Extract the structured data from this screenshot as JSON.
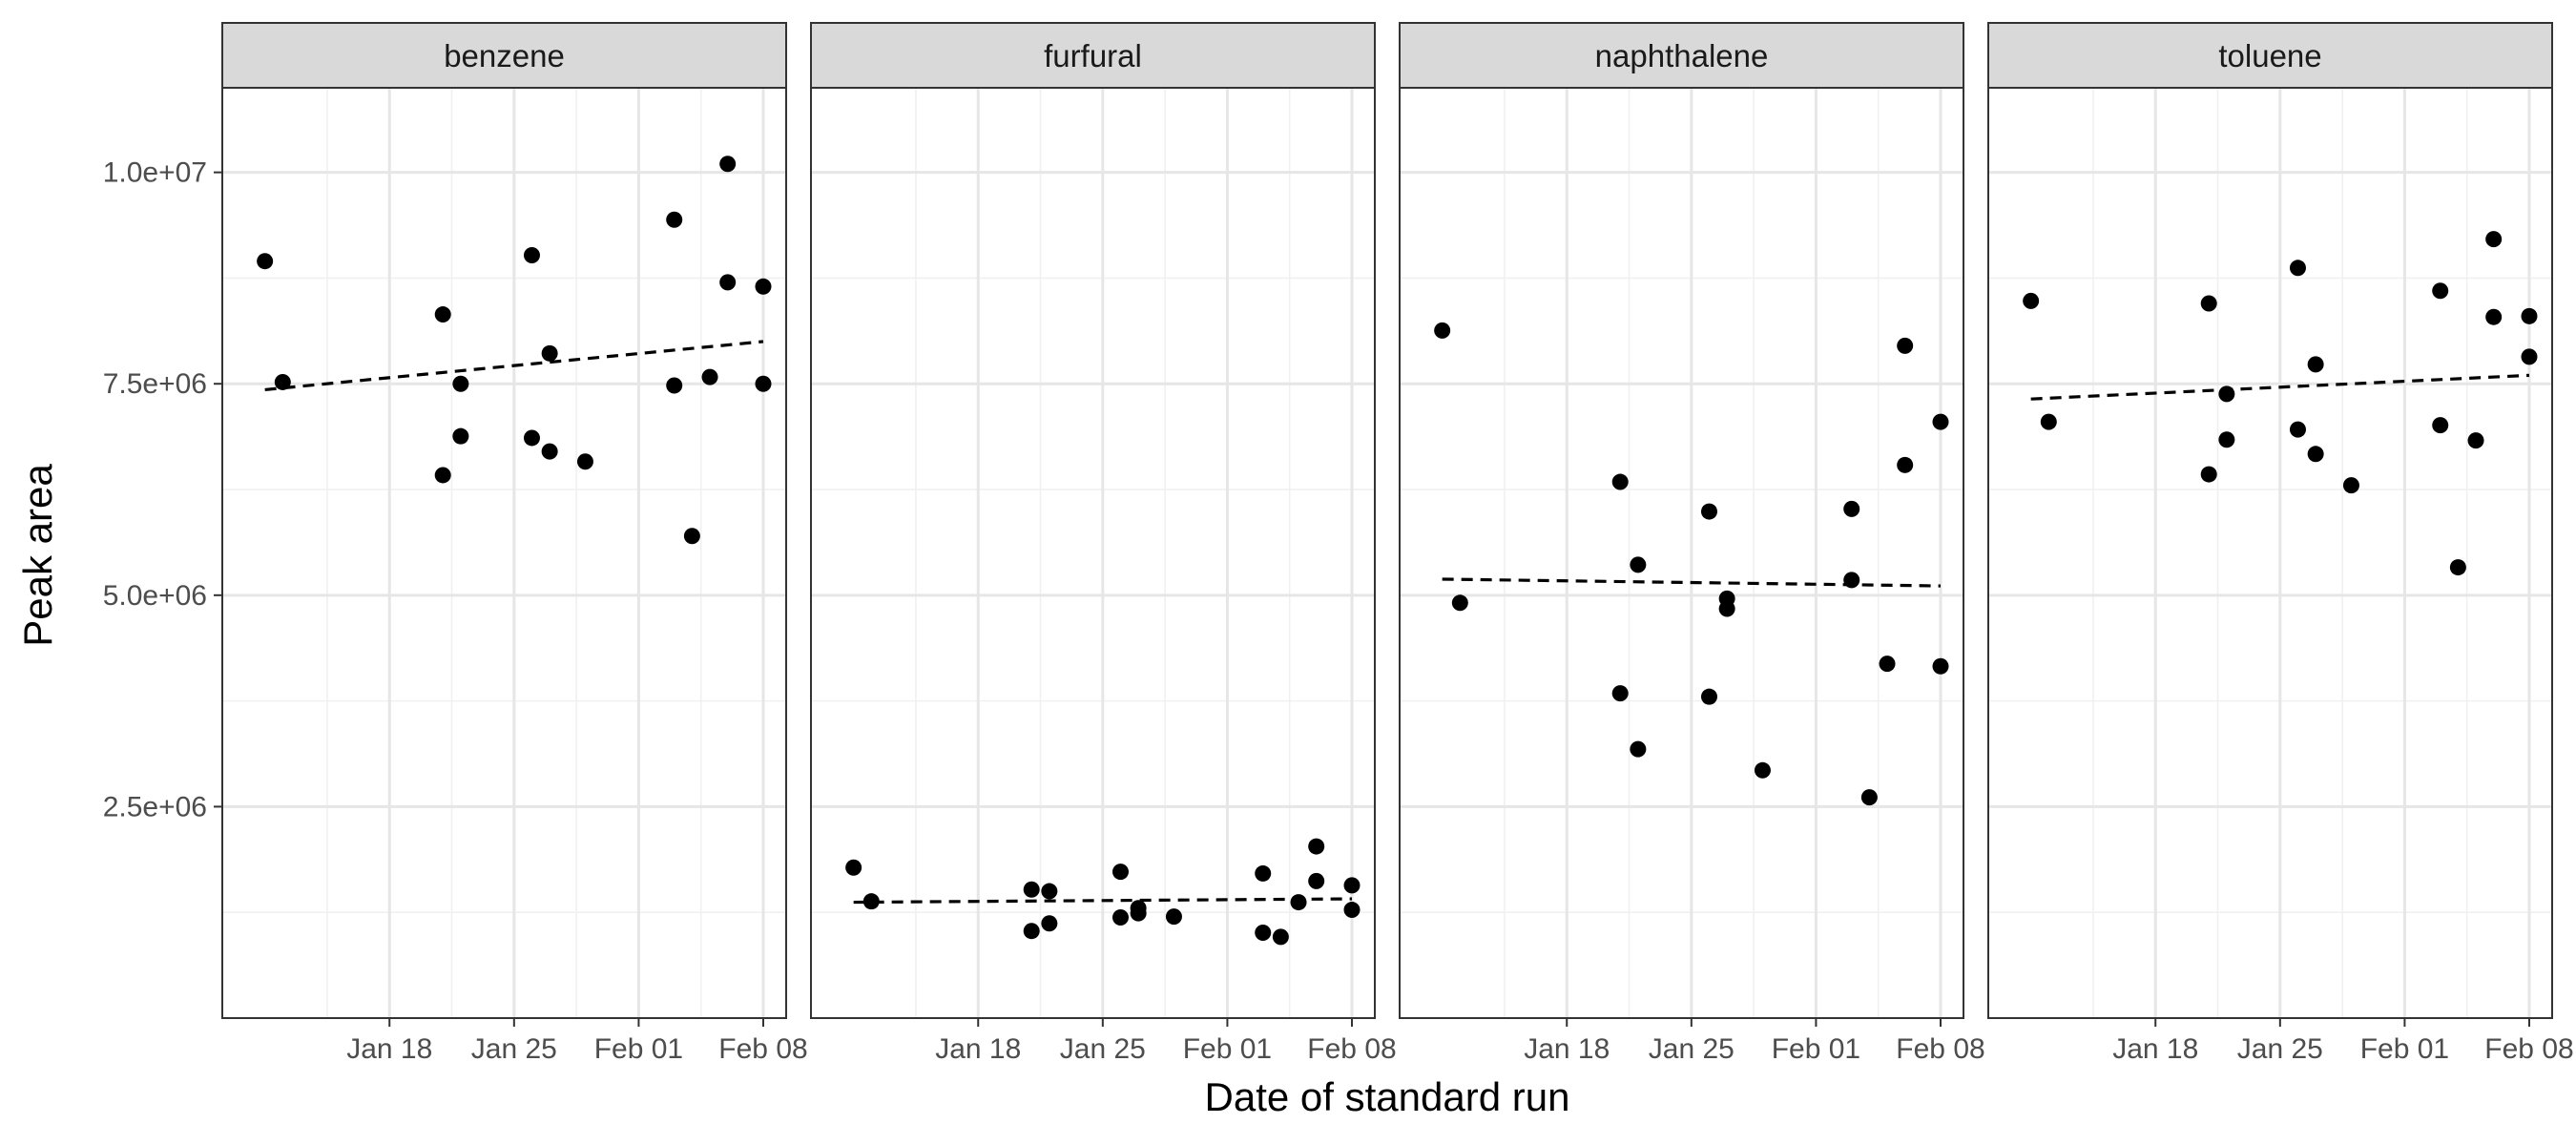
{
  "chart_data": {
    "type": "scatter",
    "xlabel": "Date of standard run",
    "ylabel": "Peak area",
    "ylim": [
      0,
      11000000
    ],
    "y_ticks": [
      {
        "value": 2500000,
        "label": "2.5e+06"
      },
      {
        "value": 5000000,
        "label": "5.0e+06"
      },
      {
        "value": 7500000,
        "label": "7.5e+06"
      },
      {
        "value": 10000000,
        "label": "1.0e+07"
      }
    ],
    "x_range": [
      "2024-01-10",
      "2024-02-08"
    ],
    "x_ticks": [
      {
        "value": "2024-01-18",
        "label": "Jan 18"
      },
      {
        "value": "2024-01-25",
        "label": "Jan 25"
      },
      {
        "value": "2024-02-01",
        "label": "Feb 01"
      },
      {
        "value": "2024-02-08",
        "label": "Feb 08"
      }
    ],
    "grid": true,
    "trend_line": "dashed linear fit",
    "point_color": "#000000",
    "facets": [
      {
        "name": "benzene",
        "points": [
          {
            "x": "2024-01-11",
            "y": 8950000
          },
          {
            "x": "2024-01-12",
            "y": 7520000
          },
          {
            "x": "2024-01-21",
            "y": 6420000
          },
          {
            "x": "2024-01-21",
            "y": 8320000
          },
          {
            "x": "2024-01-22",
            "y": 7500000
          },
          {
            "x": "2024-01-22",
            "y": 6880000
          },
          {
            "x": "2024-01-26",
            "y": 9020000
          },
          {
            "x": "2024-01-26",
            "y": 6860000
          },
          {
            "x": "2024-01-27",
            "y": 7860000
          },
          {
            "x": "2024-01-27",
            "y": 6700000
          },
          {
            "x": "2024-01-29",
            "y": 6580000
          },
          {
            "x": "2024-02-03",
            "y": 9440000
          },
          {
            "x": "2024-02-03",
            "y": 7480000
          },
          {
            "x": "2024-02-04",
            "y": 5700000
          },
          {
            "x": "2024-02-05",
            "y": 7580000
          },
          {
            "x": "2024-02-06",
            "y": 10100000
          },
          {
            "x": "2024-02-06",
            "y": 8700000
          },
          {
            "x": "2024-02-08",
            "y": 8650000
          },
          {
            "x": "2024-02-08",
            "y": 7500000
          }
        ],
        "trend": {
          "start": 7430000,
          "end": 8000000
        }
      },
      {
        "name": "furfural",
        "points": [
          {
            "x": "2024-01-11",
            "y": 1780000
          },
          {
            "x": "2024-01-12",
            "y": 1380000
          },
          {
            "x": "2024-01-21",
            "y": 1520000
          },
          {
            "x": "2024-01-21",
            "y": 1030000
          },
          {
            "x": "2024-01-22",
            "y": 1500000
          },
          {
            "x": "2024-01-22",
            "y": 1120000
          },
          {
            "x": "2024-01-26",
            "y": 1730000
          },
          {
            "x": "2024-01-26",
            "y": 1190000
          },
          {
            "x": "2024-01-27",
            "y": 1300000
          },
          {
            "x": "2024-01-27",
            "y": 1240000
          },
          {
            "x": "2024-01-29",
            "y": 1200000
          },
          {
            "x": "2024-02-03",
            "y": 1710000
          },
          {
            "x": "2024-02-03",
            "y": 1010000
          },
          {
            "x": "2024-02-04",
            "y": 960000
          },
          {
            "x": "2024-02-05",
            "y": 1370000
          },
          {
            "x": "2024-02-06",
            "y": 2030000
          },
          {
            "x": "2024-02-06",
            "y": 1620000
          },
          {
            "x": "2024-02-08",
            "y": 1570000
          },
          {
            "x": "2024-02-08",
            "y": 1280000
          }
        ],
        "trend": {
          "start": 1370000,
          "end": 1410000
        }
      },
      {
        "name": "naphthalene",
        "points": [
          {
            "x": "2024-01-11",
            "y": 8130000
          },
          {
            "x": "2024-01-12",
            "y": 4910000
          },
          {
            "x": "2024-01-21",
            "y": 6340000
          },
          {
            "x": "2024-01-21",
            "y": 3840000
          },
          {
            "x": "2024-01-22",
            "y": 5360000
          },
          {
            "x": "2024-01-22",
            "y": 3180000
          },
          {
            "x": "2024-01-26",
            "y": 5990000
          },
          {
            "x": "2024-01-26",
            "y": 3800000
          },
          {
            "x": "2024-01-27",
            "y": 4960000
          },
          {
            "x": "2024-01-27",
            "y": 4840000
          },
          {
            "x": "2024-01-29",
            "y": 2930000
          },
          {
            "x": "2024-02-03",
            "y": 6020000
          },
          {
            "x": "2024-02-03",
            "y": 5180000
          },
          {
            "x": "2024-02-04",
            "y": 2610000
          },
          {
            "x": "2024-02-05",
            "y": 4190000
          },
          {
            "x": "2024-02-06",
            "y": 7950000
          },
          {
            "x": "2024-02-06",
            "y": 6540000
          },
          {
            "x": "2024-02-08",
            "y": 7050000
          },
          {
            "x": "2024-02-08",
            "y": 4160000
          }
        ],
        "trend": {
          "start": 5190000,
          "end": 5110000
        }
      },
      {
        "name": "toluene",
        "points": [
          {
            "x": "2024-01-11",
            "y": 8480000
          },
          {
            "x": "2024-01-12",
            "y": 7050000
          },
          {
            "x": "2024-01-21",
            "y": 6430000
          },
          {
            "x": "2024-01-21",
            "y": 8450000
          },
          {
            "x": "2024-01-22",
            "y": 7380000
          },
          {
            "x": "2024-01-22",
            "y": 6840000
          },
          {
            "x": "2024-01-26",
            "y": 8870000
          },
          {
            "x": "2024-01-26",
            "y": 6960000
          },
          {
            "x": "2024-01-27",
            "y": 7730000
          },
          {
            "x": "2024-01-27",
            "y": 6670000
          },
          {
            "x": "2024-01-29",
            "y": 6300000
          },
          {
            "x": "2024-02-03",
            "y": 8600000
          },
          {
            "x": "2024-02-03",
            "y": 7010000
          },
          {
            "x": "2024-02-04",
            "y": 5330000
          },
          {
            "x": "2024-02-05",
            "y": 6830000
          },
          {
            "x": "2024-02-06",
            "y": 9210000
          },
          {
            "x": "2024-02-06",
            "y": 8290000
          },
          {
            "x": "2024-02-08",
            "y": 8300000
          },
          {
            "x": "2024-02-08",
            "y": 7820000
          }
        ],
        "trend": {
          "start": 7320000,
          "end": 7600000
        }
      }
    ]
  }
}
